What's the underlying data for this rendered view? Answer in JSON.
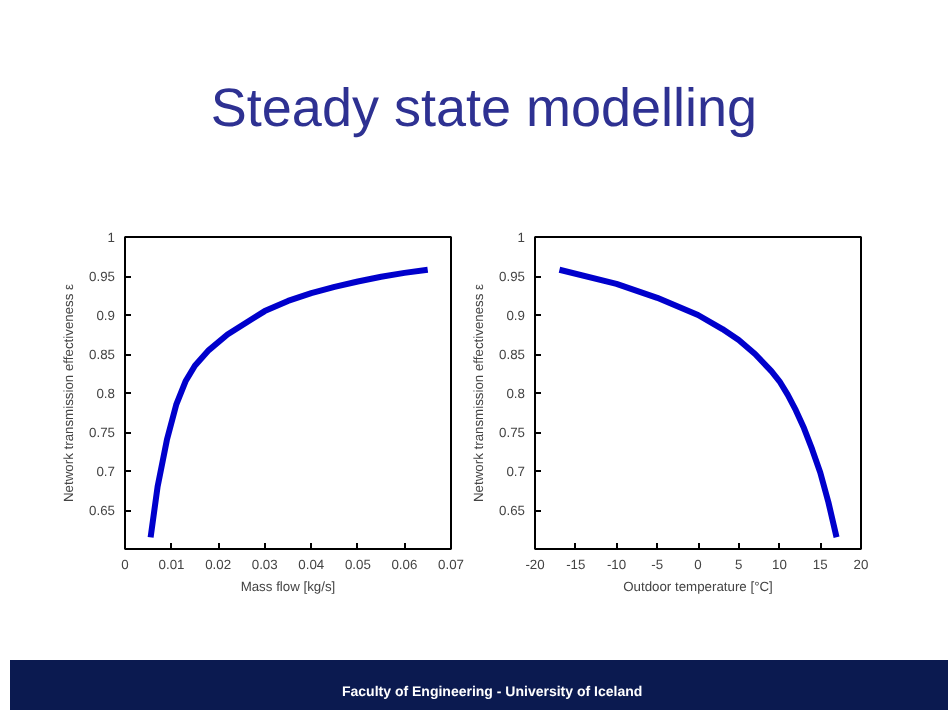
{
  "chart_data": [
    {
      "type": "line",
      "title": "Steady state modelling",
      "xlabel": "Mass flow [kg/s]",
      "ylabel": "Network transmission effectiveness ε",
      "xlim": [
        0,
        0.07
      ],
      "xticks": [
        0,
        0.01,
        0.02,
        0.03,
        0.04,
        0.05,
        0.06,
        0.07
      ],
      "ylim": [
        0.6,
        1
      ],
      "yticks": [
        0.65,
        0.7,
        0.75,
        0.8,
        0.85,
        0.9,
        0.95,
        1
      ],
      "grid": false,
      "series": [
        {
          "color": "#0000cc",
          "x": [
            0.0055,
            0.007,
            0.009,
            0.011,
            0.013,
            0.015,
            0.018,
            0.022,
            0.026,
            0.03,
            0.035,
            0.04,
            0.045,
            0.05,
            0.055,
            0.06,
            0.065
          ],
          "values": [
            0.615,
            0.68,
            0.74,
            0.785,
            0.815,
            0.835,
            0.855,
            0.875,
            0.89,
            0.905,
            0.918,
            0.928,
            0.936,
            0.943,
            0.949,
            0.954,
            0.958
          ]
        }
      ]
    },
    {
      "type": "line",
      "xlabel": "Outdoor temperature [°C]",
      "ylabel": "Network transmission effectiveness ε",
      "xlim": [
        -20,
        20
      ],
      "xticks": [
        -20,
        -15,
        -10,
        -5,
        0,
        5,
        10,
        15,
        20
      ],
      "ylim": [
        0.6,
        1
      ],
      "yticks": [
        0.65,
        0.7,
        0.75,
        0.8,
        0.85,
        0.9,
        0.95,
        1
      ],
      "grid": false,
      "annotations": [
        "Faculty of Engineering - University of Iceland"
      ],
      "series": [
        {
          "color": "#0000cc",
          "x": [
            -17,
            -10,
            -5,
            0,
            3,
            5,
            7,
            9,
            10,
            11,
            12,
            13,
            14,
            15,
            16,
            17
          ],
          "values": [
            0.958,
            0.94,
            0.922,
            0.9,
            0.882,
            0.868,
            0.85,
            0.828,
            0.815,
            0.798,
            0.778,
            0.755,
            0.728,
            0.698,
            0.66,
            0.615
          ]
        }
      ]
    }
  ]
}
